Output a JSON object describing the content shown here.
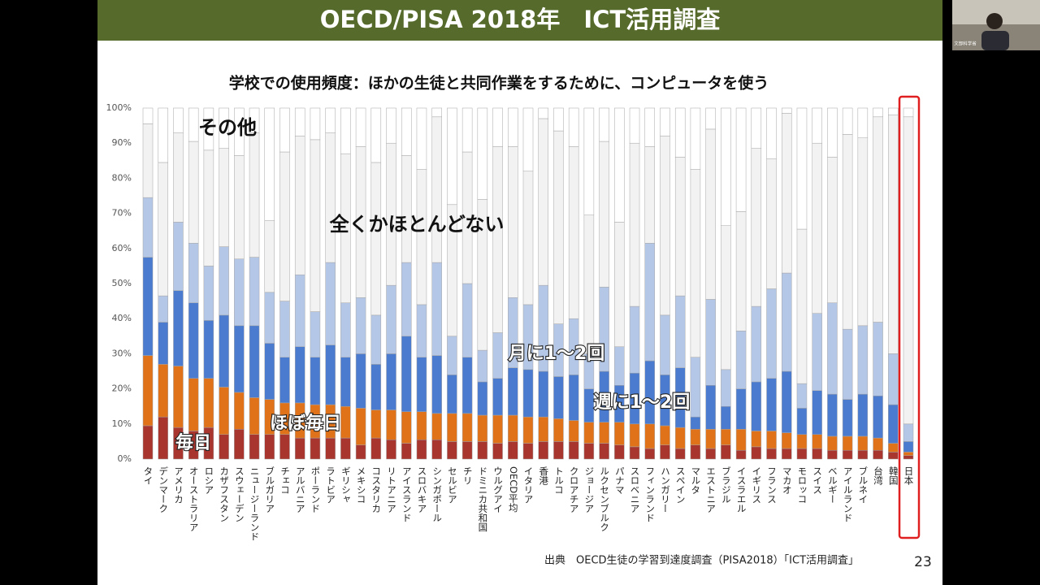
{
  "header": {
    "title": "OECD/PISA 2018年　ICT活用調査"
  },
  "webcam": {
    "label": "文部科学省"
  },
  "chart_data": {
    "type": "stacked_bar",
    "title": "学校での使用頻度：ほかの生徒と共同作業をするために、コンピュータを使う",
    "categories": [
      "タイ",
      "デンマーク",
      "アメリカ",
      "オーストラリア",
      "ロシア",
      "カザフスタン",
      "スウェーデン",
      "ニュージーランド",
      "ブルガリア",
      "チェコ",
      "アルバニア",
      "ポーランド",
      "ラトビア",
      "ギリシャ",
      "メキシコ",
      "コスタリカ",
      "リトアニア",
      "アイスランド",
      "スロバキア",
      "シンガポール",
      "セルビア",
      "チリ",
      "ドミニカ共和国",
      "ウルグアイ",
      "OECD平均",
      "イタリア",
      "香港",
      "トルコ",
      "クロアチア",
      "ジョージア",
      "ルクセンブルク",
      "パナマ",
      "スロベニア",
      "フィンランド",
      "ハンガリー",
      "スペイン",
      "マルタ",
      "エストニア",
      "ブラジル",
      "イスラエル",
      "イギリス",
      "フランス",
      "マカオ",
      "モロッコ",
      "スイス",
      "ベルギー",
      "アイルランド",
      "ブルネイ",
      "台湾",
      "韓国",
      "日本"
    ],
    "series": [
      {
        "name": "毎日",
        "color": "#a8362e",
        "values": [
          9.5,
          12,
          9,
          8,
          9,
          7,
          8.5,
          7,
          7,
          7,
          6,
          6,
          6,
          6,
          4,
          6,
          5.5,
          4.5,
          5.5,
          5.5,
          5,
          5,
          5,
          4.5,
          5,
          4.5,
          5,
          5,
          5,
          4.5,
          4.5,
          4,
          3.5,
          3,
          4,
          3,
          4,
          3,
          4,
          2.5,
          3.5,
          3,
          3,
          3,
          3,
          2.5,
          2.5,
          2.5,
          2.5,
          2,
          1
        ]
      },
      {
        "name": "ほぼ毎日",
        "color": "#e0731a",
        "values": [
          20,
          15,
          17.5,
          15,
          14,
          13.5,
          10.5,
          10.5,
          10,
          9,
          10,
          9.5,
          9.5,
          9,
          10.5,
          8,
          8.5,
          9,
          8,
          7.5,
          8,
          8,
          7.5,
          8,
          7.5,
          7.5,
          7,
          6.5,
          6,
          6,
          6,
          6.5,
          6.5,
          7,
          5.5,
          6,
          4.5,
          5.5,
          4.5,
          6,
          4.5,
          5,
          4.5,
          4,
          4,
          4,
          4,
          4,
          3.5,
          2.5,
          1
        ]
      },
      {
        "name": "週に1～2回",
        "color": "#4a7bcf",
        "values": [
          28,
          12,
          21.5,
          21.5,
          16.5,
          20.5,
          19,
          20.5,
          16,
          13,
          16,
          13.5,
          17,
          14,
          15.5,
          13,
          16,
          21.5,
          15.5,
          16.5,
          11,
          16,
          9.5,
          10.5,
          13.5,
          13.5,
          13,
          12,
          13,
          9.5,
          14.5,
          10.5,
          14.5,
          18,
          14.5,
          17,
          3.5,
          12.5,
          6.5,
          11.5,
          14,
          15,
          17.5,
          7.5,
          12.5,
          12,
          10.5,
          12,
          12,
          11,
          3
        ]
      },
      {
        "name": "月に1～2回",
        "color": "#b4c7e7",
        "values": [
          17,
          7.5,
          19.5,
          17,
          15.5,
          19.5,
          19,
          19.5,
          14.5,
          16,
          20.5,
          13,
          23.5,
          15.5,
          16,
          14,
          19.5,
          21,
          15,
          26.5,
          11,
          21,
          9,
          13,
          20,
          18.5,
          24.5,
          15,
          16,
          10,
          24,
          11,
          19,
          33.5,
          17,
          20.5,
          17,
          24.5,
          10.5,
          16.5,
          21.5,
          25.5,
          28,
          7,
          22,
          26,
          20,
          19.5,
          21,
          14.5,
          5
        ]
      },
      {
        "name": "全くかほとんどない",
        "color": "#f2f2f2",
        "values": [
          21,
          38,
          25.5,
          29,
          33,
          28,
          29.5,
          35.5,
          20.5,
          42.5,
          39.5,
          49,
          37,
          42.5,
          43,
          43.5,
          40.5,
          30.5,
          38.5,
          41.5,
          37.5,
          37.5,
          43,
          53,
          43,
          38,
          47.5,
          55,
          49,
          39.5,
          41.5,
          35.5,
          46.5,
          27.5,
          51,
          39.5,
          53.5,
          48.5,
          41,
          34,
          45,
          37,
          45.5,
          44,
          48.5,
          41.5,
          55.5,
          53.5,
          58.5,
          68,
          87.5
        ]
      },
      {
        "name": "その他",
        "color": "#ffffff",
        "values": [
          4.5,
          15.5,
          7,
          9.5,
          12,
          11.5,
          13.5,
          7,
          32,
          12.5,
          8,
          9,
          7,
          13,
          11,
          15.5,
          10,
          13.5,
          17.5,
          2.5,
          27.5,
          12.5,
          26,
          11,
          11,
          18,
          3,
          6.5,
          11,
          30.5,
          9.5,
          32.5,
          10,
          11,
          8,
          14,
          17.5,
          6,
          33.5,
          29.5,
          11.5,
          14.5,
          1.5,
          34.5,
          10,
          14,
          7.5,
          8.5,
          2.5,
          2,
          2.5
        ]
      }
    ],
    "ylim": [
      0,
      100
    ],
    "yticks": [
      {
        "value": 0,
        "label": "0%"
      },
      {
        "value": 10,
        "label": "10%"
      },
      {
        "value": 20,
        "label": "20%"
      },
      {
        "value": 30,
        "label": "30%"
      },
      {
        "value": 40,
        "label": "40%"
      },
      {
        "value": 50,
        "label": "50%"
      },
      {
        "value": 60,
        "label": "60%"
      },
      {
        "value": 70,
        "label": "70%"
      },
      {
        "value": 80,
        "label": "80%"
      },
      {
        "value": 90,
        "label": "90%"
      },
      {
        "value": 100,
        "label": "100%"
      }
    ],
    "source": "出典　OECD生徒の学習到達度調査（PISA2018）「ICT活用調査」",
    "page_number": "23"
  }
}
